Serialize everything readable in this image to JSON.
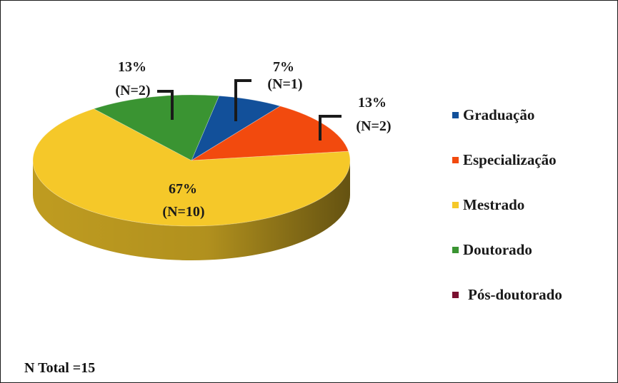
{
  "chart_data": {
    "type": "pie",
    "title": "",
    "categories": [
      "Graduação",
      "Especialização",
      "Mestrado",
      "Doutorado",
      "Pós-doutorado"
    ],
    "values": [
      1,
      2,
      10,
      2,
      0
    ],
    "percent_labels": [
      "7%",
      "13%",
      "67%",
      "13%",
      ""
    ],
    "count_labels": [
      "(N=1)",
      "(N=2)",
      "(N=10)",
      "(N=2)",
      ""
    ],
    "colors": [
      "#12509A",
      "#F24A0E",
      "#F5C829",
      "#3A9432",
      "#7A1030"
    ],
    "style": "3d-tilted",
    "legend_position": "right"
  },
  "footer": {
    "total_label": "N Total =15"
  }
}
